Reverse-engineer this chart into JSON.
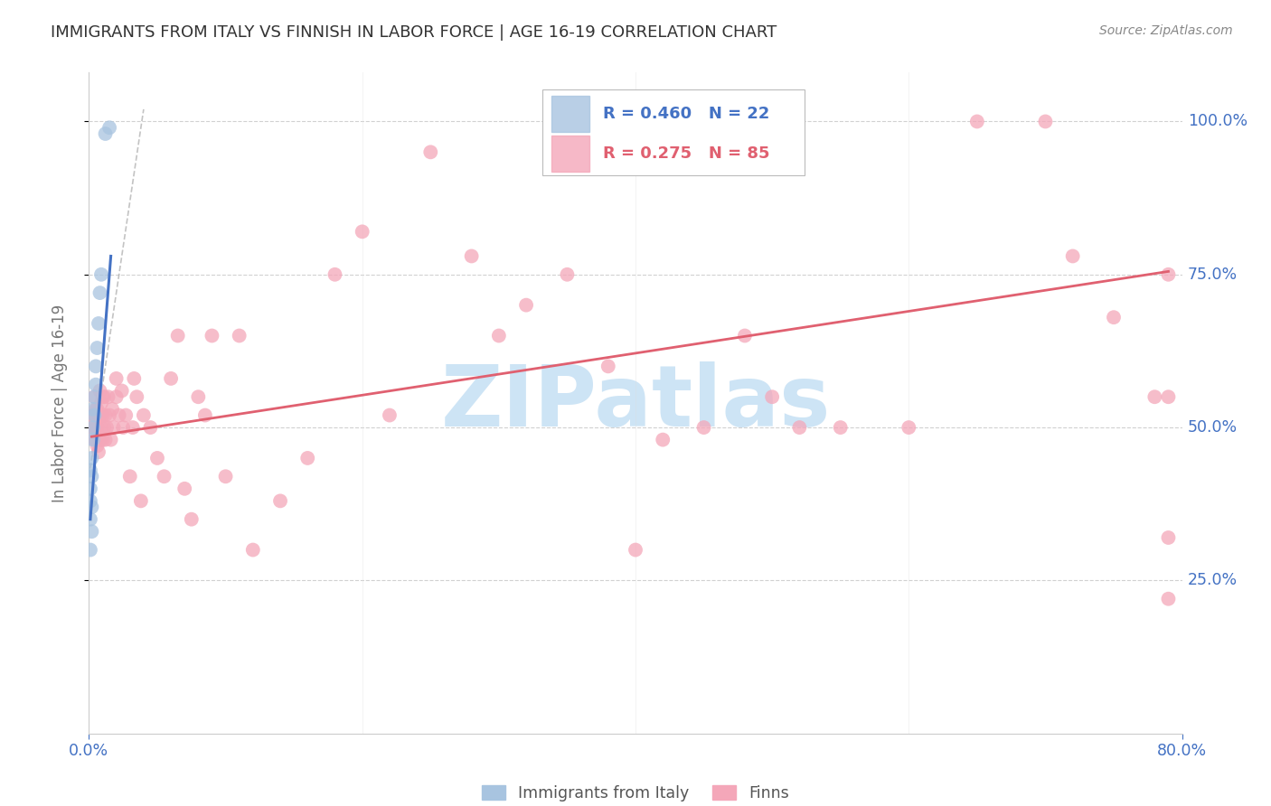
{
  "title": "IMMIGRANTS FROM ITALY VS FINNISH IN LABOR FORCE | AGE 16-19 CORRELATION CHART",
  "source": "Source: ZipAtlas.com",
  "ylabel": "In Labor Force | Age 16-19",
  "right_yticks": [
    0.25,
    0.5,
    0.75,
    1.0
  ],
  "right_yticklabels": [
    "25.0%",
    "50.0%",
    "75.0%",
    "100.0%"
  ],
  "xlim": [
    0.0,
    0.8
  ],
  "ylim": [
    0.0,
    1.08
  ],
  "R_italy": 0.46,
  "N_italy": 22,
  "R_finns": 0.275,
  "N_finns": 85,
  "italy_color": "#a8c4e0",
  "finns_color": "#f4a7b9",
  "italy_line_color": "#4472c4",
  "finns_line_color": "#e06070",
  "axis_label_color": "#4472c4",
  "background_color": "#ffffff",
  "grid_color": "#cccccc",
  "watermark_color": "#cde4f5",
  "italy_x": [
    0.001,
    0.001,
    0.001,
    0.001,
    0.001,
    0.002,
    0.002,
    0.002,
    0.002,
    0.003,
    0.003,
    0.003,
    0.004,
    0.004,
    0.005,
    0.005,
    0.006,
    0.007,
    0.008,
    0.009,
    0.012,
    0.015
  ],
  "italy_y": [
    0.3,
    0.35,
    0.38,
    0.4,
    0.43,
    0.33,
    0.37,
    0.42,
    0.45,
    0.48,
    0.5,
    0.53,
    0.52,
    0.55,
    0.57,
    0.6,
    0.63,
    0.67,
    0.72,
    0.75,
    0.98,
    0.99
  ],
  "finns_x": [
    0.002,
    0.003,
    0.003,
    0.004,
    0.004,
    0.004,
    0.005,
    0.005,
    0.005,
    0.006,
    0.006,
    0.006,
    0.007,
    0.007,
    0.008,
    0.008,
    0.008,
    0.009,
    0.009,
    0.01,
    0.01,
    0.01,
    0.011,
    0.011,
    0.012,
    0.012,
    0.013,
    0.014,
    0.015,
    0.016,
    0.017,
    0.018,
    0.02,
    0.02,
    0.022,
    0.024,
    0.025,
    0.027,
    0.03,
    0.032,
    0.033,
    0.035,
    0.038,
    0.04,
    0.045,
    0.05,
    0.055,
    0.06,
    0.065,
    0.07,
    0.075,
    0.08,
    0.085,
    0.09,
    0.1,
    0.11,
    0.12,
    0.14,
    0.16,
    0.18,
    0.2,
    0.22,
    0.25,
    0.28,
    0.3,
    0.32,
    0.35,
    0.38,
    0.4,
    0.42,
    0.45,
    0.48,
    0.5,
    0.52,
    0.55,
    0.6,
    0.65,
    0.7,
    0.72,
    0.75,
    0.78,
    0.79,
    0.79,
    0.79,
    0.79
  ],
  "finns_y": [
    0.5,
    0.5,
    0.52,
    0.48,
    0.52,
    0.55,
    0.48,
    0.5,
    0.53,
    0.47,
    0.5,
    0.53,
    0.46,
    0.52,
    0.48,
    0.52,
    0.56,
    0.5,
    0.54,
    0.48,
    0.52,
    0.55,
    0.5,
    0.55,
    0.48,
    0.52,
    0.5,
    0.55,
    0.52,
    0.48,
    0.53,
    0.5,
    0.55,
    0.58,
    0.52,
    0.56,
    0.5,
    0.52,
    0.42,
    0.5,
    0.58,
    0.55,
    0.38,
    0.52,
    0.5,
    0.45,
    0.42,
    0.58,
    0.65,
    0.4,
    0.35,
    0.55,
    0.52,
    0.65,
    0.42,
    0.65,
    0.3,
    0.38,
    0.45,
    0.75,
    0.82,
    0.52,
    0.95,
    0.78,
    0.65,
    0.7,
    0.75,
    0.6,
    0.3,
    0.48,
    0.5,
    0.65,
    0.55,
    0.5,
    0.5,
    0.5,
    1.0,
    1.0,
    0.78,
    0.68,
    0.55,
    0.22,
    0.32,
    0.55,
    0.75
  ],
  "dashed_line_x": [
    0.0,
    0.04
  ],
  "dashed_line_y": [
    0.42,
    1.02
  ],
  "italy_trend_x": [
    0.001,
    0.016
  ],
  "italy_trend_y_start": 0.35,
  "italy_trend_y_end": 0.78,
  "finns_trend_x": [
    0.002,
    0.79
  ],
  "finns_trend_y_start": 0.485,
  "finns_trend_y_end": 0.755
}
